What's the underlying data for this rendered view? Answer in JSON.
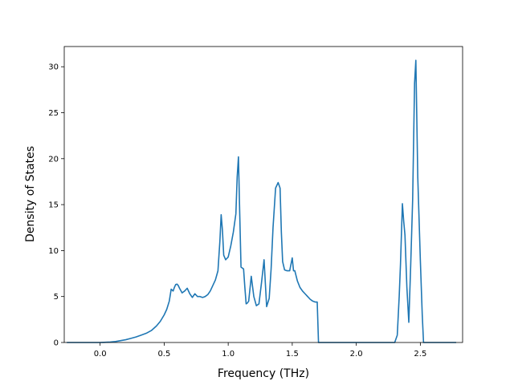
{
  "chart_data": {
    "type": "line",
    "title": "",
    "xlabel": "Frequency (THz)",
    "ylabel": "Density of States",
    "xlim": [
      -0.28,
      2.83
    ],
    "ylim": [
      0,
      32.2
    ],
    "xticks": [
      0.0,
      0.5,
      1.0,
      1.5,
      2.0,
      2.5
    ],
    "xtick_labels": [
      "0.0",
      "0.5",
      "1.0",
      "1.5",
      "2.0",
      "2.5"
    ],
    "yticks": [
      0,
      5,
      10,
      15,
      20,
      25,
      30
    ],
    "ytick_labels": [
      "0",
      "5",
      "10",
      "15",
      "20",
      "25",
      "30"
    ],
    "grid": false,
    "line_color": "#1f77b4",
    "series": [
      {
        "x": [
          -0.26,
          0.0,
          0.08,
          0.12,
          0.16,
          0.2,
          0.24,
          0.28,
          0.32,
          0.36,
          0.4,
          0.44,
          0.47,
          0.5,
          0.52,
          0.54,
          0.555,
          0.57,
          0.58,
          0.59,
          0.6,
          0.61,
          0.62,
          0.64,
          0.66,
          0.68,
          0.7,
          0.72,
          0.74,
          0.76,
          0.78,
          0.8,
          0.82,
          0.84,
          0.86,
          0.88,
          0.9,
          0.92,
          0.935,
          0.945,
          0.955,
          0.965,
          0.98,
          1.0,
          1.02,
          1.04,
          1.06,
          1.07,
          1.08,
          1.09,
          1.1,
          1.12,
          1.13,
          1.14,
          1.15,
          1.16,
          1.18,
          1.2,
          1.22,
          1.24,
          1.26,
          1.28,
          1.3,
          1.32,
          1.335,
          1.35,
          1.37,
          1.39,
          1.405,
          1.415,
          1.425,
          1.44,
          1.46,
          1.48,
          1.5,
          1.51,
          1.52,
          1.54,
          1.56,
          1.58,
          1.6,
          1.62,
          1.64,
          1.66,
          1.68,
          1.695,
          1.705,
          1.72,
          1.9,
          2.1,
          2.3,
          2.32,
          2.335,
          2.345,
          2.36,
          2.37,
          2.38,
          2.395,
          2.41,
          2.425,
          2.44,
          2.455,
          2.465,
          2.48,
          2.5,
          2.515,
          2.525,
          2.6,
          2.78
        ],
        "y": [
          0.0,
          0.0,
          0.05,
          0.1,
          0.2,
          0.3,
          0.45,
          0.6,
          0.8,
          1.0,
          1.3,
          1.8,
          2.3,
          3.0,
          3.6,
          4.5,
          5.8,
          5.6,
          6.0,
          6.3,
          6.35,
          6.2,
          5.9,
          5.4,
          5.6,
          5.9,
          5.3,
          4.9,
          5.3,
          5.0,
          5.0,
          4.9,
          5.0,
          5.2,
          5.6,
          6.2,
          6.8,
          7.8,
          11.0,
          13.9,
          12.2,
          9.5,
          9.0,
          9.3,
          10.5,
          12.0,
          14.0,
          18.0,
          20.2,
          14.0,
          8.2,
          8.0,
          6.0,
          4.2,
          4.3,
          4.5,
          7.2,
          5.0,
          4.0,
          4.2,
          6.5,
          9.0,
          3.9,
          4.8,
          8.0,
          12.5,
          16.8,
          17.4,
          16.8,
          12.0,
          8.8,
          7.9,
          7.8,
          7.8,
          9.2,
          7.8,
          7.8,
          6.7,
          6.0,
          5.6,
          5.3,
          5.0,
          4.7,
          4.5,
          4.4,
          4.4,
          0.0,
          0.0,
          0.0,
          0.0,
          0.0,
          0.8,
          5.0,
          8.5,
          15.1,
          13.2,
          11.7,
          6.0,
          2.2,
          8.5,
          15.5,
          28.2,
          30.7,
          18.0,
          9.0,
          3.0,
          0.0,
          0.0,
          0.0
        ]
      }
    ]
  }
}
